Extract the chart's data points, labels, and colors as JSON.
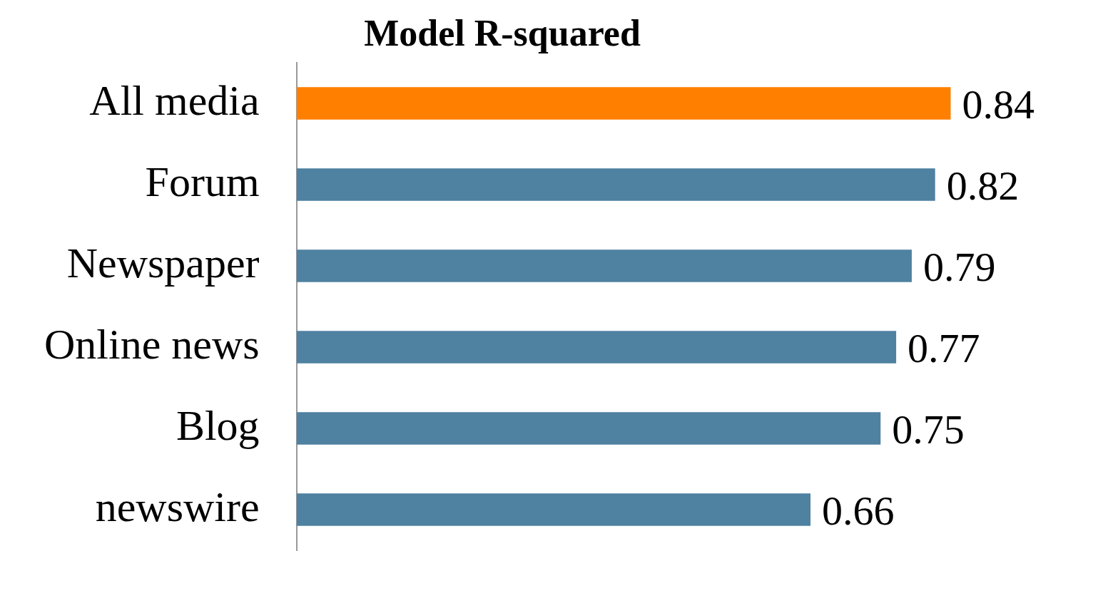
{
  "chart_data": {
    "type": "bar",
    "orientation": "horizontal",
    "title": "Model R-squared",
    "categories": [
      "All media",
      "Forum",
      "Newspaper",
      "Online news",
      "Blog",
      "newswire"
    ],
    "values": [
      0.84,
      0.82,
      0.79,
      0.77,
      0.75,
      0.66
    ],
    "colors": [
      "#ff7f00",
      "#4f81a0",
      "#4f81a0",
      "#4f81a0",
      "#4f81a0",
      "#4f81a0"
    ],
    "data_labels": true,
    "legend": false
  }
}
